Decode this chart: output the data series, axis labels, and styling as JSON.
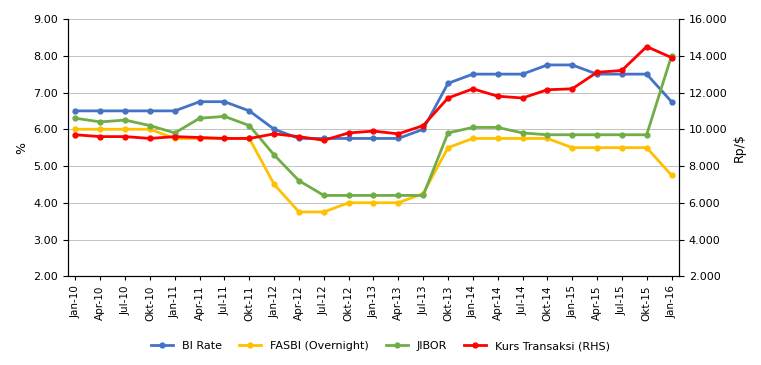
{
  "title": "",
  "x_labels": [
    "Jan-10",
    "Apr-10",
    "Jul-10",
    "Okt-10",
    "Jan-11",
    "Apr-11",
    "Jul-11",
    "Okt-11",
    "Jan-12",
    "Apr-12",
    "Jul-12",
    "Okt-12",
    "Jan-13",
    "Apr-13",
    "Jul-13",
    "Okt-13",
    "Jan-14",
    "Apr-14",
    "Jul-14",
    "Okt-14",
    "Jan-15",
    "Apr-15",
    "Jul-15",
    "Okt-15",
    "Jan-16"
  ],
  "bi_rate": [
    6.5,
    6.5,
    6.5,
    6.5,
    6.5,
    6.75,
    6.75,
    6.5,
    6.0,
    5.75,
    5.75,
    5.75,
    5.75,
    5.75,
    6.0,
    7.25,
    7.5,
    7.5,
    7.5,
    7.75,
    7.75,
    7.5,
    7.5,
    7.5,
    6.75
  ],
  "fasbi": [
    6.0,
    6.0,
    6.0,
    6.0,
    5.75,
    5.75,
    5.75,
    5.75,
    4.5,
    3.75,
    3.75,
    4.0,
    4.0,
    4.0,
    4.25,
    5.5,
    5.75,
    5.75,
    5.75,
    5.75,
    5.5,
    5.5,
    5.5,
    5.5,
    4.75
  ],
  "jibor": [
    6.3,
    6.2,
    6.25,
    6.1,
    5.9,
    6.3,
    6.35,
    6.1,
    5.3,
    4.6,
    4.2,
    4.2,
    4.2,
    4.2,
    4.2,
    5.9,
    6.05,
    6.05,
    5.9,
    5.85,
    5.85,
    5.85,
    5.85,
    5.85,
    8.0
  ],
  "kurs": [
    9700,
    9600,
    9600,
    9500,
    9600,
    9550,
    9500,
    9500,
    9750,
    9600,
    9400,
    9800,
    9900,
    9750,
    10200,
    11700,
    12200,
    11800,
    11700,
    12150,
    12200,
    13100,
    13200,
    14500,
    13900
  ],
  "bi_rate_color": "#4472C4",
  "fasbi_color": "#FFC000",
  "jibor_color": "#70AD47",
  "kurs_color": "#FF0000",
  "ylim_left": [
    2.0,
    9.0
  ],
  "ylim_right": [
    2000,
    16000
  ],
  "yticks_left": [
    2.0,
    3.0,
    4.0,
    5.0,
    6.0,
    7.0,
    8.0,
    9.0
  ],
  "yticks_right": [
    2000,
    4000,
    6000,
    8000,
    10000,
    12000,
    14000,
    16000
  ],
  "ylabel_left": "%",
  "ylabel_right": "Rp/$",
  "background_color": "#FFFFFF",
  "grid_color": "#AAAAAA",
  "legend_labels": [
    "BI Rate",
    "FASBI (Overnight)",
    "JIBOR",
    "Kurs Transaksi (RHS)"
  ]
}
